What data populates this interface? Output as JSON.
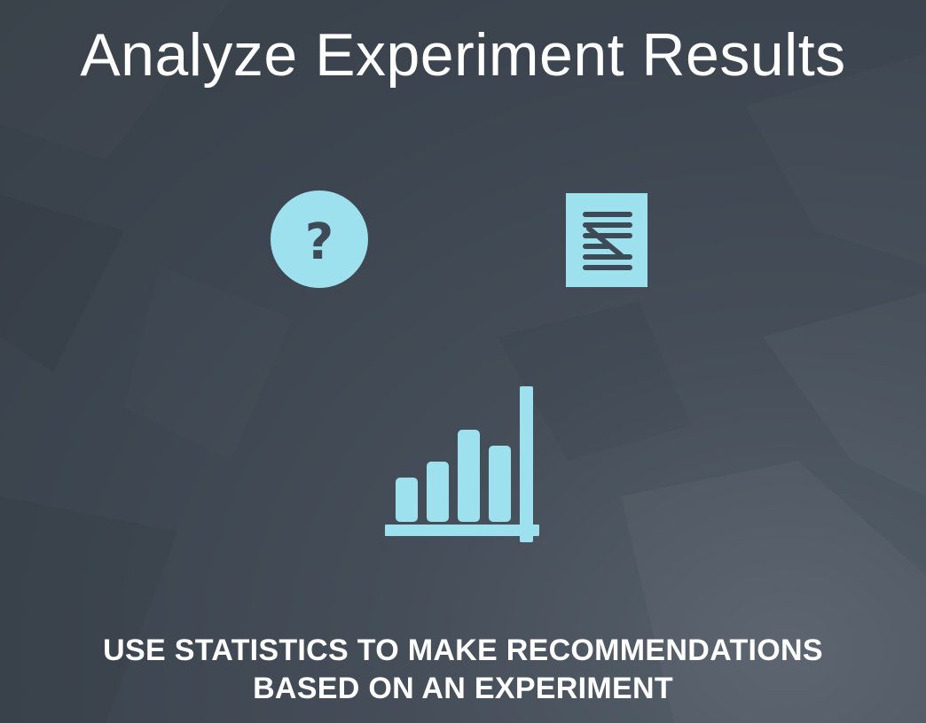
{
  "slide": {
    "title": "Analyze Experiment Results",
    "subtitle_line1": "USE STATISTICS TO MAKE RECOMMENDATIONS",
    "subtitle_line2": "BASED ON AN EXPERIMENT",
    "question_glyph": "?"
  },
  "icons": {
    "question": "question-circle-icon",
    "document": "document-icon",
    "chart": "bar-chart-icon"
  },
  "colors": {
    "accent": "#9de0ee",
    "icon_stroke": "#3e4a55",
    "text": "#ffffff",
    "background": "#3d4650"
  }
}
